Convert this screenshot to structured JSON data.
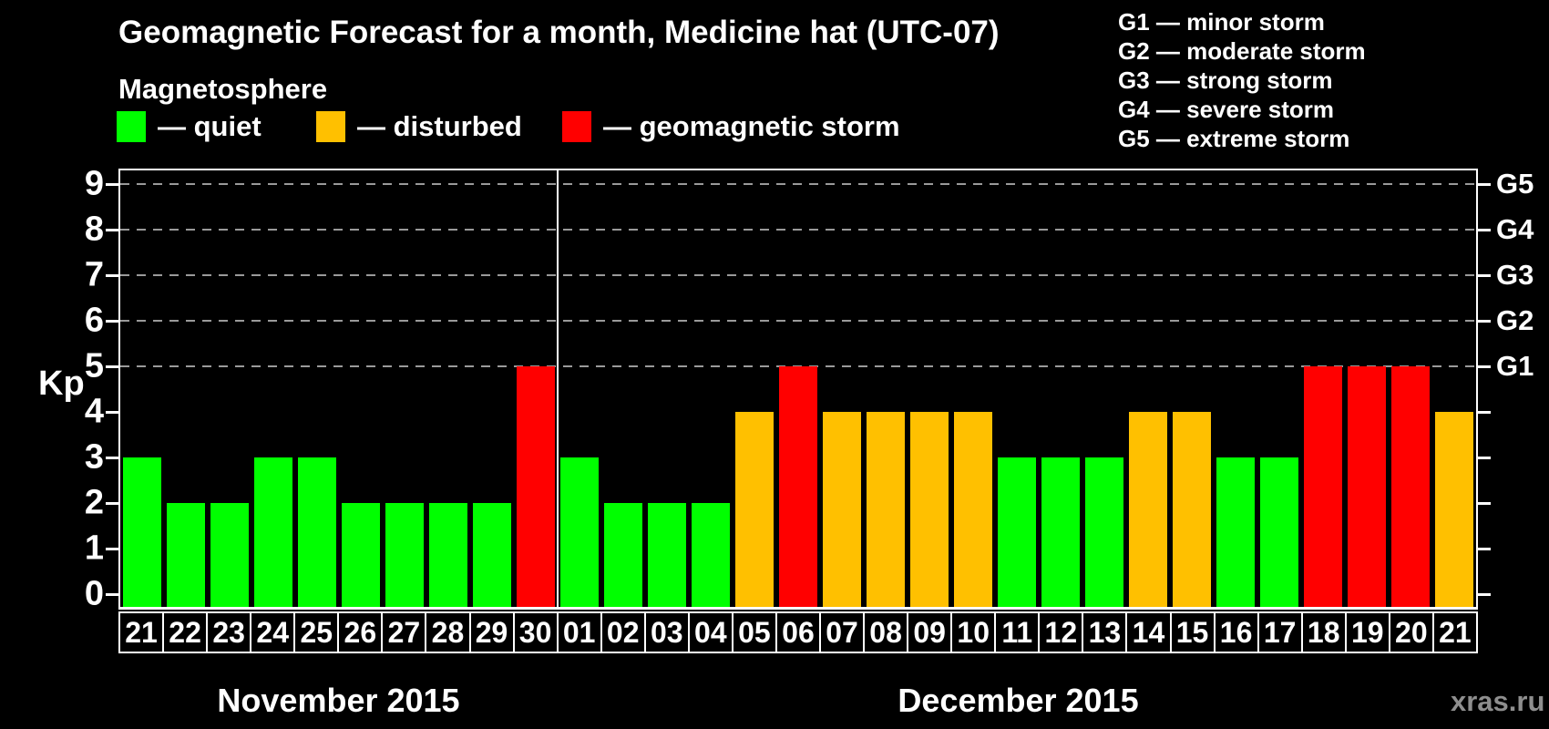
{
  "title": "Geomagnetic Forecast for a month, Medicine hat (UTC-07)",
  "subtitle": "Magnetosphere",
  "legend": {
    "items": [
      {
        "label": "— quiet",
        "status": "quiet"
      },
      {
        "label": "— disturbed",
        "status": "disturbed"
      },
      {
        "label": "— geomagnetic storm",
        "status": "storm"
      }
    ]
  },
  "g_legend": {
    "items": [
      "G1 — minor storm",
      "G2 — moderate storm",
      "G3 — strong storm",
      "G4 — severe storm",
      "G5 — extreme storm"
    ]
  },
  "y_axis": {
    "label": "Kp",
    "ticks": [
      0,
      1,
      2,
      3,
      4,
      5,
      6,
      7,
      8,
      9
    ]
  },
  "right_axis": {
    "ticks": [
      0,
      1,
      2,
      3,
      4,
      5,
      6,
      7,
      8,
      9
    ],
    "labels": [
      {
        "label": "G1",
        "kp": 5
      },
      {
        "label": "G2",
        "kp": 6
      },
      {
        "label": "G3",
        "kp": 7
      },
      {
        "label": "G4",
        "kp": 8
      },
      {
        "label": "G5",
        "kp": 9
      }
    ]
  },
  "months": [
    {
      "name": "November 2015",
      "days": [
        {
          "date": "21",
          "kp": 3,
          "status": "quiet"
        },
        {
          "date": "22",
          "kp": 2,
          "status": "quiet"
        },
        {
          "date": "23",
          "kp": 2,
          "status": "quiet"
        },
        {
          "date": "24",
          "kp": 3,
          "status": "quiet"
        },
        {
          "date": "25",
          "kp": 3,
          "status": "quiet"
        },
        {
          "date": "26",
          "kp": 2,
          "status": "quiet"
        },
        {
          "date": "27",
          "kp": 2,
          "status": "quiet"
        },
        {
          "date": "28",
          "kp": 2,
          "status": "quiet"
        },
        {
          "date": "29",
          "kp": 2,
          "status": "quiet"
        },
        {
          "date": "30",
          "kp": 5,
          "status": "storm"
        }
      ]
    },
    {
      "name": "December 2015",
      "days": [
        {
          "date": "01",
          "kp": 3,
          "status": "quiet"
        },
        {
          "date": "02",
          "kp": 2,
          "status": "quiet"
        },
        {
          "date": "03",
          "kp": 2,
          "status": "quiet"
        },
        {
          "date": "04",
          "kp": 2,
          "status": "quiet"
        },
        {
          "date": "05",
          "kp": 4,
          "status": "disturbed"
        },
        {
          "date": "06",
          "kp": 5,
          "status": "storm"
        },
        {
          "date": "07",
          "kp": 4,
          "status": "disturbed"
        },
        {
          "date": "08",
          "kp": 4,
          "status": "disturbed"
        },
        {
          "date": "09",
          "kp": 4,
          "status": "disturbed"
        },
        {
          "date": "10",
          "kp": 4,
          "status": "disturbed"
        },
        {
          "date": "11",
          "kp": 3,
          "status": "quiet"
        },
        {
          "date": "12",
          "kp": 3,
          "status": "quiet"
        },
        {
          "date": "13",
          "kp": 3,
          "status": "quiet"
        },
        {
          "date": "14",
          "kp": 4,
          "status": "disturbed"
        },
        {
          "date": "15",
          "kp": 4,
          "status": "disturbed"
        },
        {
          "date": "16",
          "kp": 3,
          "status": "quiet"
        },
        {
          "date": "17",
          "kp": 3,
          "status": "quiet"
        },
        {
          "date": "18",
          "kp": 5,
          "status": "storm"
        },
        {
          "date": "19",
          "kp": 5,
          "status": "storm"
        },
        {
          "date": "20",
          "kp": 5,
          "status": "storm"
        },
        {
          "date": "21",
          "kp": 4,
          "status": "disturbed"
        }
      ]
    }
  ],
  "watermark": "xras.ru",
  "colors": {
    "quiet": "#00ff00",
    "disturbed": "#ffc000",
    "storm": "#ff0000",
    "axis": "#ffffff",
    "grid": "#9a9a9a",
    "text": "#ffffff",
    "watermark": "#8e8e8e",
    "background": "#000000"
  },
  "chart_data": {
    "type": "bar",
    "title": "Geomagnetic Forecast for a month, Medicine hat (UTC-07)",
    "subtitle": "Magnetosphere",
    "xlabel": "",
    "ylabel": "Kp",
    "ylim": [
      0,
      9
    ],
    "yticks": [
      0,
      1,
      2,
      3,
      4,
      5,
      6,
      7,
      8,
      9
    ],
    "gridlines_at_kp": [
      5,
      6,
      7,
      8,
      9
    ],
    "grid_style": "dashed horizontal, gray, only at G-storm levels",
    "legend_position": "top-left",
    "right_axis_map": {
      "G1": 5,
      "G2": 6,
      "G3": 7,
      "G4": 8,
      "G5": 9
    },
    "categories": [
      "Nov 21",
      "Nov 22",
      "Nov 23",
      "Nov 24",
      "Nov 25",
      "Nov 26",
      "Nov 27",
      "Nov 28",
      "Nov 29",
      "Nov 30",
      "Dec 01",
      "Dec 02",
      "Dec 03",
      "Dec 04",
      "Dec 05",
      "Dec 06",
      "Dec 07",
      "Dec 08",
      "Dec 09",
      "Dec 10",
      "Dec 11",
      "Dec 12",
      "Dec 13",
      "Dec 14",
      "Dec 15",
      "Dec 16",
      "Dec 17",
      "Dec 18",
      "Dec 19",
      "Dec 20",
      "Dec 21"
    ],
    "values": [
      3,
      2,
      2,
      3,
      3,
      2,
      2,
      2,
      2,
      5,
      3,
      2,
      2,
      2,
      4,
      5,
      4,
      4,
      4,
      4,
      3,
      3,
      3,
      4,
      4,
      3,
      3,
      5,
      5,
      5,
      4
    ],
    "statuses": [
      "quiet",
      "quiet",
      "quiet",
      "quiet",
      "quiet",
      "quiet",
      "quiet",
      "quiet",
      "quiet",
      "storm",
      "quiet",
      "quiet",
      "quiet",
      "quiet",
      "disturbed",
      "storm",
      "disturbed",
      "disturbed",
      "disturbed",
      "disturbed",
      "quiet",
      "quiet",
      "quiet",
      "disturbed",
      "disturbed",
      "quiet",
      "quiet",
      "storm",
      "storm",
      "storm",
      "disturbed"
    ],
    "color_map": {
      "quiet": "#00ff00",
      "disturbed": "#ffc000",
      "storm": "#ff0000"
    },
    "month_separator_after_index": 9
  }
}
